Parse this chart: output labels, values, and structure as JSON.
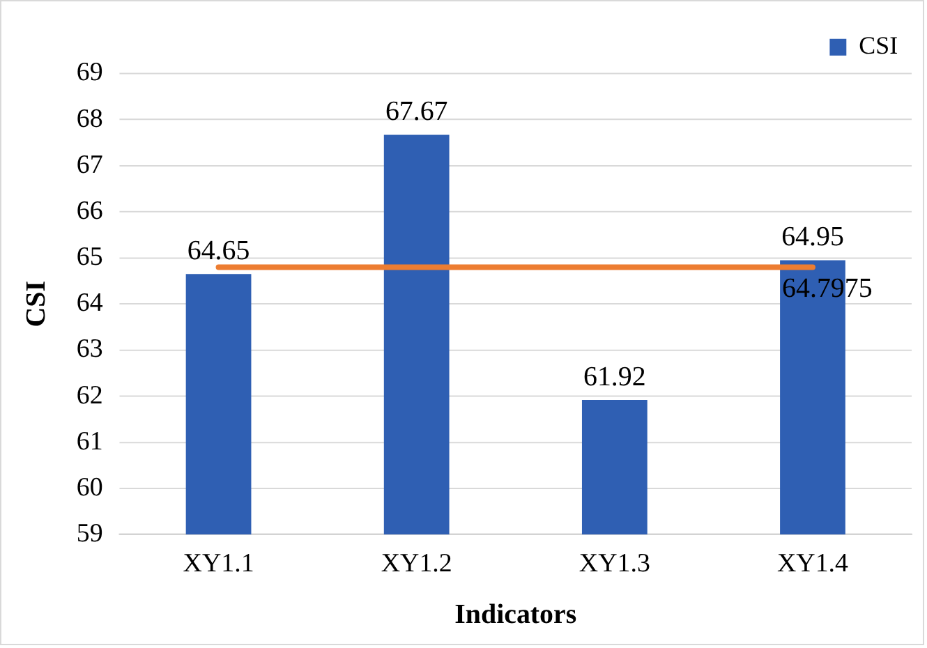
{
  "chart_data": {
    "type": "bar",
    "xlabel": "Indicators",
    "ylabel": "CSI",
    "categories": [
      "XY1.1",
      "XY1.2",
      "XY1.3",
      "XY1.4"
    ],
    "series": [
      {
        "name": "CSI",
        "color": "#2f5fb3",
        "values": [
          64.65,
          67.67,
          61.92,
          64.95
        ]
      }
    ],
    "ylim": [
      59,
      69
    ],
    "yticks": [
      59,
      60,
      61,
      62,
      63,
      64,
      65,
      66,
      67,
      68,
      69
    ],
    "grid": "y",
    "legend": "top right",
    "data_labels": true,
    "ref_lines": [
      {
        "axis": "y",
        "value": 64.7975,
        "label": "64.7975",
        "color": "#ed7d31"
      }
    ]
  }
}
